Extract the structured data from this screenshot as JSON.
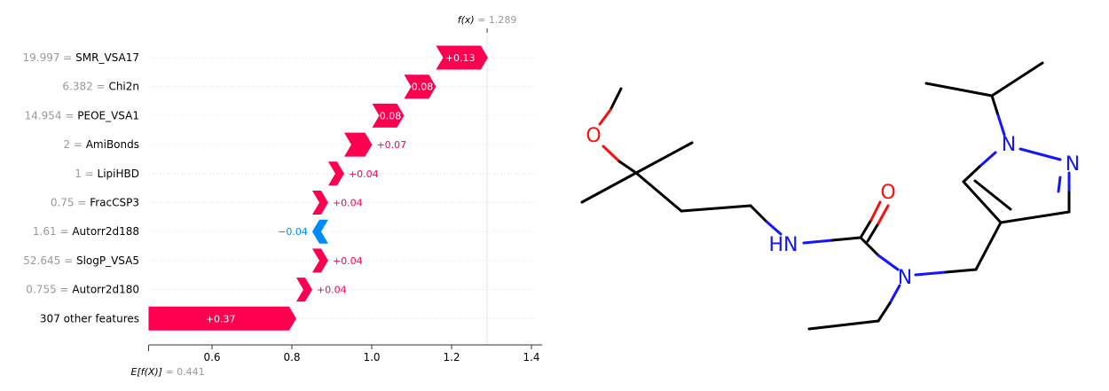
{
  "chart_data": {
    "type": "waterfall",
    "fx_label": "f(x)",
    "fx_value": "1.289",
    "fx": 1.289,
    "base_label": "E[f(X)]",
    "base_value": "0.441",
    "base": 0.441,
    "xlim": [
      0.4,
      1.42
    ],
    "ticks": [
      "0.6",
      "0.8",
      "1.0",
      "1.2",
      "1.4"
    ],
    "tick_values": [
      0.6,
      0.8,
      1.0,
      1.2,
      1.4
    ],
    "colors": {
      "positive": "#ff0051",
      "negative": "#008bfb",
      "label_gray": "#999999"
    },
    "rows": [
      {
        "value_text": "19.997",
        "name": "SMR_VSA17",
        "contribution": 0.13,
        "label": "+0.13"
      },
      {
        "value_text": "6.382",
        "name": "Chi2n",
        "contribution": 0.08,
        "label": "+0.08"
      },
      {
        "value_text": "14.954",
        "name": "PEOE_VSA1",
        "contribution": 0.08,
        "label": "+0.08"
      },
      {
        "value_text": "2",
        "name": "AmiBonds",
        "contribution": 0.07,
        "label": "+0.07"
      },
      {
        "value_text": "1",
        "name": "LipiHBD",
        "contribution": 0.04,
        "label": "+0.04"
      },
      {
        "value_text": "0.75",
        "name": "FracCSP3",
        "contribution": 0.04,
        "label": "+0.04"
      },
      {
        "value_text": "1.61",
        "name": "Autorr2d188",
        "contribution": -0.04,
        "label": "−0.04"
      },
      {
        "value_text": "52.645",
        "name": "SlogP_VSA5",
        "contribution": 0.04,
        "label": "+0.04"
      },
      {
        "value_text": "0.755",
        "name": "Autorr2d180",
        "contribution": 0.04,
        "label": "+0.04"
      },
      {
        "value_text": "",
        "name": "307 other features",
        "contribution": 0.37,
        "label": "+0.37"
      }
    ]
  },
  "molecule": {
    "atom_labels": {
      "oxygen_ether": "O",
      "oxygen_carbonyl": "O",
      "amide_nh": "HN",
      "amide_n": "N",
      "pyrazole_n1": "N",
      "pyrazole_n2": "N"
    },
    "colors": {
      "bond": "#000000",
      "oxygen": "#ff0d0d",
      "nitrogen": "#1414ff"
    }
  }
}
